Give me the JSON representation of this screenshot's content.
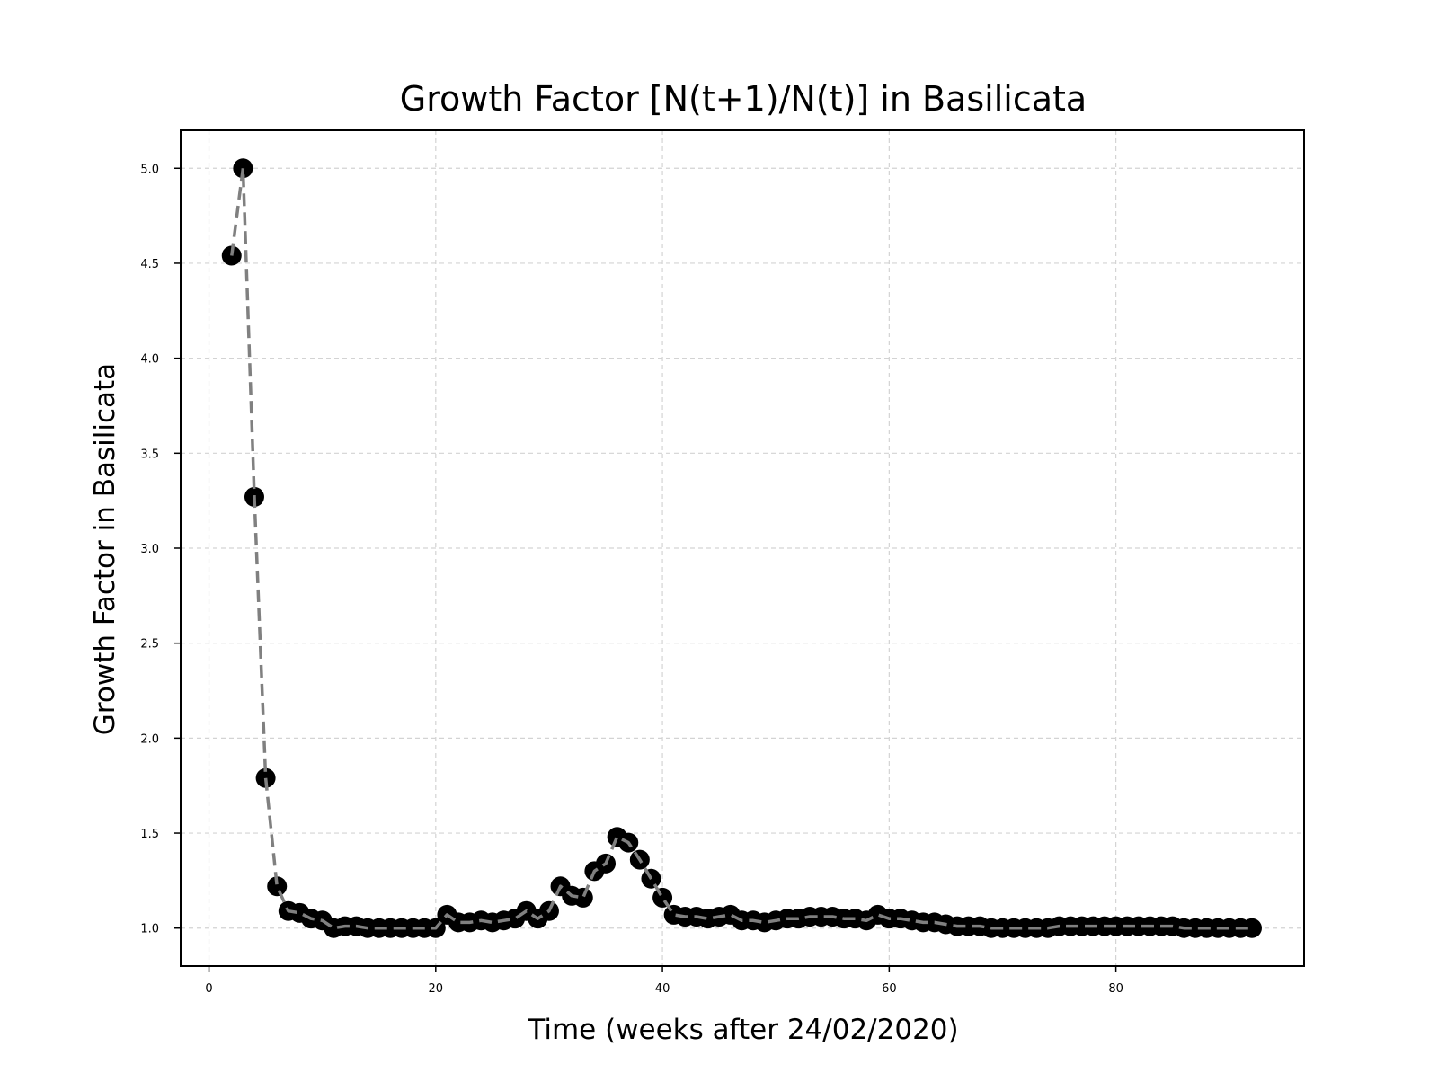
{
  "chart_data": {
    "type": "line",
    "title": "Growth Factor [N(t+1)/N(t)] in Basilicata",
    "xlabel": "Time (weeks after 24/02/2020)",
    "ylabel": "Growth Factor in Basilicata",
    "xlim": [
      -2.5,
      96.6
    ],
    "ylim": [
      0.8,
      5.2
    ],
    "x_ticks": [
      0,
      20,
      40,
      60,
      80
    ],
    "x_tick_labels": [
      "0",
      "20",
      "40",
      "60",
      "80"
    ],
    "y_ticks": [
      1.0,
      1.5,
      2.0,
      2.5,
      3.0,
      3.5,
      4.0,
      4.5,
      5.0
    ],
    "y_tick_labels": [
      "1.0",
      "1.5",
      "2.0",
      "2.5",
      "3.0",
      "3.5",
      "4.0",
      "4.5",
      "5.0"
    ],
    "grid": true,
    "legend": "none",
    "colors": {
      "marker": "#000000",
      "line": "#808080",
      "grid": "#d3d3d3",
      "axes": "#000000"
    },
    "series": [
      {
        "x": [
          2,
          3,
          4,
          5,
          6,
          7,
          8,
          9,
          10,
          11,
          12,
          13,
          14,
          15,
          16,
          17,
          18,
          19,
          20,
          21,
          22,
          23,
          24,
          25,
          26,
          27,
          28,
          29,
          30,
          31,
          32,
          33,
          34,
          35,
          36,
          37,
          38,
          39,
          40,
          41,
          42,
          43,
          44,
          45,
          46,
          47,
          48,
          49,
          50,
          51,
          52,
          53,
          54,
          55,
          56,
          57,
          58,
          59,
          60,
          61,
          62,
          63,
          64,
          65,
          66,
          67,
          68,
          69,
          70,
          71,
          72,
          73,
          74,
          75,
          76,
          77,
          78,
          79,
          80,
          81,
          82,
          83,
          84,
          85,
          86,
          87,
          88,
          89,
          90,
          91,
          92
        ],
        "values": [
          4.54,
          5.0,
          3.27,
          1.79,
          1.22,
          1.09,
          1.08,
          1.05,
          1.04,
          1.0,
          1.01,
          1.01,
          1.0,
          1.0,
          1.0,
          1.0,
          1.0,
          1.0,
          1.0,
          1.07,
          1.03,
          1.03,
          1.04,
          1.03,
          1.04,
          1.05,
          1.09,
          1.05,
          1.09,
          1.22,
          1.17,
          1.16,
          1.3,
          1.34,
          1.48,
          1.45,
          1.36,
          1.26,
          1.16,
          1.07,
          1.06,
          1.06,
          1.05,
          1.06,
          1.07,
          1.04,
          1.04,
          1.03,
          1.04,
          1.05,
          1.05,
          1.06,
          1.06,
          1.06,
          1.05,
          1.05,
          1.04,
          1.07,
          1.05,
          1.05,
          1.04,
          1.03,
          1.03,
          1.02,
          1.01,
          1.01,
          1.01,
          1.0,
          1.0,
          1.0,
          1.0,
          1.0,
          1.0,
          1.01,
          1.01,
          1.01,
          1.01,
          1.01,
          1.01,
          1.01,
          1.01,
          1.01,
          1.01,
          1.01,
          1.0,
          1.0,
          1.0,
          1.0,
          1.0,
          1.0,
          1.0
        ]
      }
    ]
  }
}
